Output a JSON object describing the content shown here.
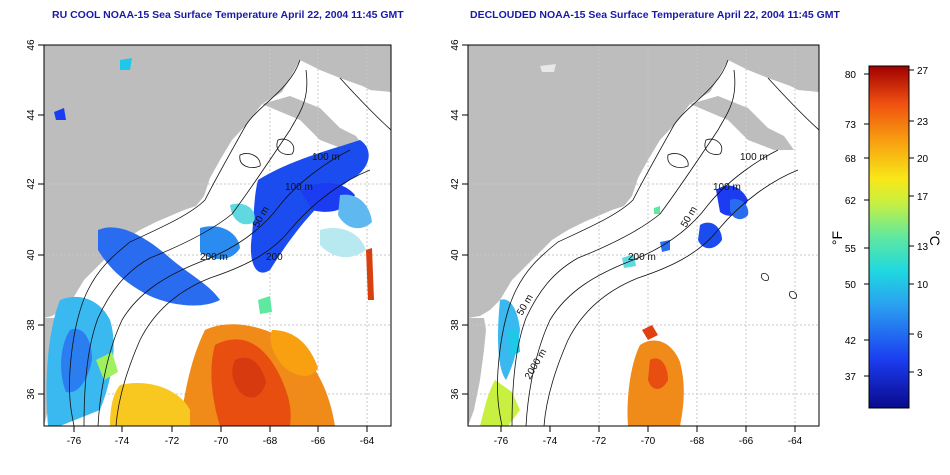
{
  "titles": {
    "left": "RU COOL NOAA-15 Sea Surface Temperature April 22, 2004 11:45 GMT",
    "right": "DECLOUDED NOAA-15 Sea Surface Temperature April 22, 2004 11:45 GMT"
  },
  "axes": {
    "lat_ticks": [
      "46",
      "44",
      "42",
      "40",
      "38",
      "36"
    ],
    "lon_ticks": [
      "-76",
      "-74",
      "-72",
      "-70",
      "-68",
      "-66",
      "-64"
    ]
  },
  "contour_labels": {
    "left": [
      "100 m",
      "100 m",
      "50 m",
      "200 m",
      "200"
    ],
    "right": [
      "100 m",
      "100 m",
      "50 m",
      "200 m",
      "50 m",
      "2000 m"
    ]
  },
  "colorbar": {
    "fahrenheit_unit": "°F",
    "celsius_unit": "°C",
    "fahrenheit_ticks": [
      "80",
      "73",
      "68",
      "62",
      "55",
      "50",
      "42",
      "37"
    ],
    "celsius_ticks": [
      "27",
      "23",
      "20",
      "17",
      "13",
      "10",
      "6",
      "3"
    ]
  },
  "colors": {
    "land": "#bdbdbd",
    "ocean": "#ffffff",
    "title": "#1a1aa8",
    "grid": "#c8c8c8"
  }
}
